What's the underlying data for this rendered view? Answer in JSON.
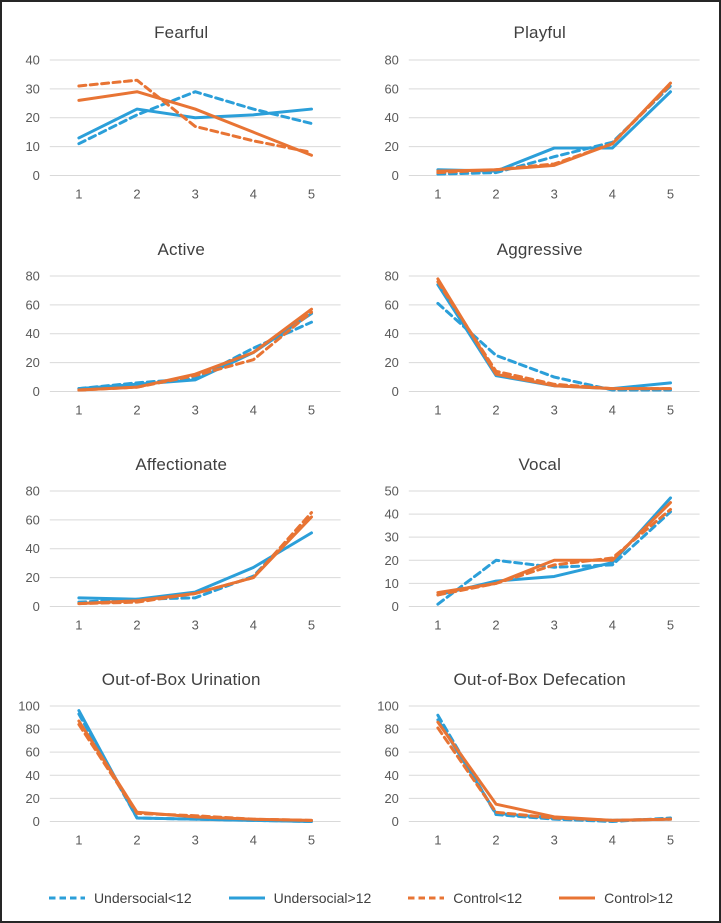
{
  "colors": {
    "blue": "#2B9FD9",
    "orange": "#E87434",
    "grid": "#D9D9D9",
    "axis_text": "#595959",
    "title_text": "#404040"
  },
  "legend": [
    {
      "label": "Undersocial<12",
      "color_key": "blue",
      "dashed": true
    },
    {
      "label": "Undersocial>12",
      "color_key": "blue",
      "dashed": false
    },
    {
      "label": "Control<12",
      "color_key": "orange",
      "dashed": true
    },
    {
      "label": "Control>12",
      "color_key": "orange",
      "dashed": false
    }
  ],
  "chart_data": [
    {
      "type": "line",
      "title": "Fearful",
      "x": [
        1,
        2,
        3,
        4,
        5
      ],
      "ylim": [
        0,
        40
      ],
      "ytick_step": 10,
      "grid": true,
      "series": [
        {
          "name": "Undersocial<12",
          "color_key": "blue",
          "dashed": true,
          "values": [
            11,
            21,
            29,
            23,
            18
          ]
        },
        {
          "name": "Undersocial>12",
          "color_key": "blue",
          "dashed": false,
          "values": [
            13,
            23,
            20,
            21,
            23
          ]
        },
        {
          "name": "Control<12",
          "color_key": "orange",
          "dashed": true,
          "values": [
            31,
            33,
            17,
            12,
            8
          ]
        },
        {
          "name": "Control>12",
          "color_key": "orange",
          "dashed": false,
          "values": [
            26,
            29,
            23,
            15,
            7
          ]
        }
      ]
    },
    {
      "type": "line",
      "title": "Playful",
      "x": [
        1,
        2,
        3,
        4,
        5
      ],
      "ylim": [
        0,
        80
      ],
      "ytick_step": 20,
      "grid": true,
      "series": [
        {
          "name": "Undersocial<12",
          "color_key": "blue",
          "dashed": true,
          "values": [
            1,
            2,
            13,
            23,
            62
          ]
        },
        {
          "name": "Undersocial>12",
          "color_key": "blue",
          "dashed": false,
          "values": [
            4,
            3,
            19,
            19,
            58
          ]
        },
        {
          "name": "Control<12",
          "color_key": "orange",
          "dashed": true,
          "values": [
            2,
            4,
            8,
            22,
            63
          ]
        },
        {
          "name": "Control>12",
          "color_key": "orange",
          "dashed": false,
          "values": [
            3,
            4,
            7,
            22,
            64
          ]
        }
      ]
    },
    {
      "type": "line",
      "title": "Active",
      "x": [
        1,
        2,
        3,
        4,
        5
      ],
      "ylim": [
        0,
        80
      ],
      "ytick_step": 20,
      "grid": true,
      "series": [
        {
          "name": "Undersocial<12",
          "color_key": "blue",
          "dashed": true,
          "values": [
            2,
            6,
            9,
            30,
            48
          ]
        },
        {
          "name": "Undersocial>12",
          "color_key": "blue",
          "dashed": false,
          "values": [
            2,
            5,
            8,
            27,
            54
          ]
        },
        {
          "name": "Control<12",
          "color_key": "orange",
          "dashed": true,
          "values": [
            1,
            3,
            11,
            22,
            55
          ]
        },
        {
          "name": "Control>12",
          "color_key": "orange",
          "dashed": false,
          "values": [
            1,
            3,
            12,
            27,
            57
          ]
        }
      ]
    },
    {
      "type": "line",
      "title": "Aggressive",
      "x": [
        1,
        2,
        3,
        4,
        5
      ],
      "ylim": [
        0,
        80
      ],
      "ytick_step": 20,
      "grid": true,
      "series": [
        {
          "name": "Undersocial<12",
          "color_key": "blue",
          "dashed": true,
          "values": [
            61,
            25,
            10,
            1,
            1
          ]
        },
        {
          "name": "Undersocial>12",
          "color_key": "blue",
          "dashed": false,
          "values": [
            74,
            11,
            4,
            2,
            6
          ]
        },
        {
          "name": "Control<12",
          "color_key": "orange",
          "dashed": true,
          "values": [
            76,
            14,
            5,
            2,
            2
          ]
        },
        {
          "name": "Control>12",
          "color_key": "orange",
          "dashed": false,
          "values": [
            78,
            12,
            4,
            2,
            2
          ]
        }
      ]
    },
    {
      "type": "line",
      "title": "Affectionate",
      "x": [
        1,
        2,
        3,
        4,
        5
      ],
      "ylim": [
        0,
        80
      ],
      "ytick_step": 20,
      "grid": true,
      "series": [
        {
          "name": "Undersocial<12",
          "color_key": "blue",
          "dashed": true,
          "values": [
            3,
            5,
            6,
            21,
            63
          ]
        },
        {
          "name": "Undersocial>12",
          "color_key": "blue",
          "dashed": false,
          "values": [
            6,
            5,
            10,
            27,
            51
          ]
        },
        {
          "name": "Control<12",
          "color_key": "orange",
          "dashed": true,
          "values": [
            2,
            3,
            9,
            20,
            65
          ]
        },
        {
          "name": "Control>12",
          "color_key": "orange",
          "dashed": false,
          "values": [
            2,
            4,
            9,
            20,
            62
          ]
        }
      ]
    },
    {
      "type": "line",
      "title": "Vocal",
      "x": [
        1,
        2,
        3,
        4,
        5
      ],
      "ylim": [
        0,
        50
      ],
      "ytick_step": 10,
      "grid": true,
      "series": [
        {
          "name": "Undersocial<12",
          "color_key": "blue",
          "dashed": true,
          "values": [
            1,
            20,
            17,
            18,
            41
          ]
        },
        {
          "name": "Undersocial>12",
          "color_key": "blue",
          "dashed": false,
          "values": [
            5,
            11,
            13,
            19,
            47
          ]
        },
        {
          "name": "Control<12",
          "color_key": "orange",
          "dashed": true,
          "values": [
            5,
            10,
            18,
            21,
            42
          ]
        },
        {
          "name": "Control>12",
          "color_key": "orange",
          "dashed": false,
          "values": [
            6,
            10,
            20,
            20,
            45
          ]
        }
      ]
    },
    {
      "type": "line",
      "title": "Out-of-Box Urination",
      "x": [
        1,
        2,
        3,
        4,
        5
      ],
      "ylim": [
        0,
        100
      ],
      "ytick_step": 20,
      "grid": true,
      "series": [
        {
          "name": "Undersocial<12",
          "color_key": "blue",
          "dashed": true,
          "values": [
            93,
            3,
            2,
            1,
            0
          ]
        },
        {
          "name": "Undersocial>12",
          "color_key": "blue",
          "dashed": false,
          "values": [
            96,
            3,
            2,
            1,
            0
          ]
        },
        {
          "name": "Control<12",
          "color_key": "orange",
          "dashed": true,
          "values": [
            84,
            7,
            5,
            2,
            1
          ]
        },
        {
          "name": "Control>12",
          "color_key": "orange",
          "dashed": false,
          "values": [
            87,
            8,
            4,
            2,
            1
          ]
        }
      ]
    },
    {
      "type": "line",
      "title": "Out-of-Box Defecation",
      "x": [
        1,
        2,
        3,
        4,
        5
      ],
      "ylim": [
        0,
        100
      ],
      "ytick_step": 20,
      "grid": true,
      "series": [
        {
          "name": "Undersocial<12",
          "color_key": "blue",
          "dashed": true,
          "values": [
            92,
            6,
            2,
            0,
            3
          ]
        },
        {
          "name": "Undersocial>12",
          "color_key": "blue",
          "dashed": false,
          "values": [
            88,
            7,
            3,
            1,
            2
          ]
        },
        {
          "name": "Control<12",
          "color_key": "orange",
          "dashed": true,
          "values": [
            81,
            8,
            3,
            1,
            2
          ]
        },
        {
          "name": "Control>12",
          "color_key": "orange",
          "dashed": false,
          "values": [
            86,
            15,
            4,
            1,
            2
          ]
        }
      ]
    }
  ]
}
